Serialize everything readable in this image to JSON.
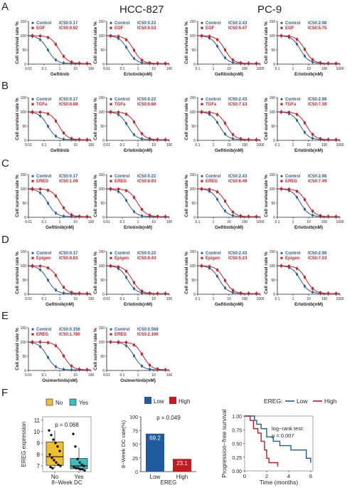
{
  "figure": {
    "headers": [
      "HCC-827",
      "PC-9"
    ],
    "panel_letters": [
      "A",
      "B",
      "C",
      "D",
      "E",
      "F"
    ]
  },
  "colors": {
    "control": "#2a5c9a",
    "treated": "#cc2027",
    "box_no": "#f0c030",
    "box_yes": "#3bbfbf",
    "bar_low": "#1f5b9e",
    "bar_high": "#c41a20"
  },
  "chart_data": [
    {
      "type": "line",
      "panel": "A",
      "cell_line": "HCC-827",
      "ylabel": "Cell survival rate %",
      "xlabel": "Gefitinib",
      "x_ticks": [
        "0.01",
        "0.1",
        "1",
        "10",
        "100"
      ],
      "y_ticks": [
        "0",
        "50",
        "100",
        "150"
      ],
      "ylim": [
        0,
        150
      ],
      "legend": [
        {
          "name": "Control",
          "ic50": "IC50:0.17"
        },
        {
          "name": "EGF",
          "ic50": "IC50:0.92"
        }
      ]
    },
    {
      "type": "line",
      "panel": "A",
      "cell_line": "HCC-827",
      "ylabel": "Cell survival rate %",
      "xlabel": "Erlotinib(nM)",
      "x_ticks": [
        "0.01",
        "0.1",
        "1",
        "10",
        "100"
      ],
      "y_ticks": [
        "0",
        "50",
        "100",
        "150"
      ],
      "ylim": [
        0,
        150
      ],
      "legend": [
        {
          "name": "Control",
          "ic50": "IC50:0.22"
        },
        {
          "name": "EGF",
          "ic50": "IC50:0.53"
        }
      ]
    },
    {
      "type": "line",
      "panel": "A",
      "cell_line": "PC-9",
      "ylabel": "Cell survival rate %",
      "xlabel": "Gefitinib(nM)",
      "x_ticks": [
        "0.1",
        "1",
        "10",
        "100",
        "1000"
      ],
      "y_ticks": [
        "0",
        "50",
        "100",
        "150"
      ],
      "ylim": [
        0,
        150
      ],
      "legend": [
        {
          "name": "Control",
          "ic50": "IC50:2.43"
        },
        {
          "name": "EGF",
          "ic50": "IC50:5.47"
        }
      ]
    },
    {
      "type": "line",
      "panel": "A",
      "cell_line": "PC-9",
      "ylabel": "Cell survival rate %",
      "xlabel": "Erlotinib(nM)",
      "x_ticks": [
        "0.1",
        "1",
        "10",
        "100",
        "1000"
      ],
      "y_ticks": [
        "0",
        "50",
        "100",
        "150"
      ],
      "ylim": [
        0,
        150
      ],
      "legend": [
        {
          "name": "Control",
          "ic50": "IC50:2.98"
        },
        {
          "name": "EGF",
          "ic50": "IC50:5.75"
        }
      ]
    },
    {
      "type": "line",
      "panel": "B",
      "cell_line": "HCC-827",
      "ylabel": "Cell survival rate %",
      "xlabel": "Gefitinib",
      "x_ticks": [
        "0.01",
        "0.1",
        "1",
        "10",
        "100"
      ],
      "y_ticks": [
        "0",
        "50",
        "100",
        "150"
      ],
      "ylim": [
        0,
        150
      ],
      "legend": [
        {
          "name": "Control",
          "ic50": "IC50:0.17"
        },
        {
          "name": "TGFa",
          "ic50": "IC50:0.88"
        }
      ]
    },
    {
      "type": "line",
      "panel": "B",
      "cell_line": "HCC-827",
      "ylabel": "Cell survival rate %",
      "xlabel": "Erlotinib(nM)",
      "x_ticks": [
        "0.01",
        "0.1",
        "1",
        "10",
        "100"
      ],
      "y_ticks": [
        "0",
        "50",
        "100",
        "150"
      ],
      "ylim": [
        0,
        150
      ],
      "legend": [
        {
          "name": "Control",
          "ic50": "IC50:0.22"
        },
        {
          "name": "TGFa",
          "ic50": "IC50:0.80"
        }
      ]
    },
    {
      "type": "line",
      "panel": "B",
      "cell_line": "PC-9",
      "ylabel": "Cell survival rate %",
      "xlabel": "Gefitinib(nM)",
      "x_ticks": [
        "0.1",
        "1",
        "10",
        "100",
        "1000"
      ],
      "y_ticks": [
        "0",
        "50",
        "100",
        "150"
      ],
      "ylim": [
        0,
        150
      ],
      "legend": [
        {
          "name": "Control",
          "ic50": "IC50:2.43"
        },
        {
          "name": "TGFa",
          "ic50": "IC50:7.13"
        }
      ]
    },
    {
      "type": "line",
      "panel": "B",
      "cell_line": "PC-9",
      "ylabel": "Cell survival rate %",
      "xlabel": "Erlotinib(nM)",
      "x_ticks": [
        "0.1",
        "1",
        "10",
        "100",
        "1000"
      ],
      "y_ticks": [
        "0",
        "50",
        "100",
        "150"
      ],
      "ylim": [
        0,
        150
      ],
      "legend": [
        {
          "name": "Control",
          "ic50": "IC50:2.98"
        },
        {
          "name": "TGFa",
          "ic50": "IC50:7.39"
        }
      ]
    },
    {
      "type": "line",
      "panel": "C",
      "cell_line": "HCC-827",
      "ylabel": "Cell survival rate %",
      "xlabel": "Gefitinib(nM)",
      "x_ticks": [
        "0.01",
        "0.1",
        "1",
        "10",
        "100"
      ],
      "y_ticks": [
        "0",
        "50",
        "100",
        "150"
      ],
      "ylim": [
        0,
        150
      ],
      "legend": [
        {
          "name": "Control",
          "ic50": "IC50:0.17"
        },
        {
          "name": "EREG",
          "ic50": "IC50:1.09"
        }
      ]
    },
    {
      "type": "line",
      "panel": "C",
      "cell_line": "HCC-827",
      "ylabel": "Cell survival rate %",
      "xlabel": "Erlotinib(nM)",
      "x_ticks": [
        "0.01",
        "0.1",
        "1",
        "10",
        "100"
      ],
      "y_ticks": [
        "0",
        "50",
        "100",
        "150"
      ],
      "ylim": [
        0,
        150
      ],
      "legend": [
        {
          "name": "Control",
          "ic50": "IC50:0.22"
        },
        {
          "name": "EREG",
          "ic50": "IC50:0.93"
        }
      ]
    },
    {
      "type": "line",
      "panel": "C",
      "cell_line": "PC-9",
      "ylabel": "Cell survival rate %",
      "xlabel": "Gefitinib(nM)",
      "x_ticks": [
        "0.1",
        "1",
        "10",
        "100",
        "1000"
      ],
      "y_ticks": [
        "0",
        "50",
        "100",
        "150"
      ],
      "ylim": [
        0,
        150
      ],
      "legend": [
        {
          "name": "Control",
          "ic50": "IC50:2.43"
        },
        {
          "name": "EREG",
          "ic50": "IC50:6.49"
        }
      ]
    },
    {
      "type": "line",
      "panel": "C",
      "cell_line": "PC-9",
      "ylabel": "Cell survival rate %",
      "xlabel": "Erlotinib(nM)",
      "x_ticks": [
        "0.1",
        "1",
        "10",
        "100",
        "1000"
      ],
      "y_ticks": [
        "0",
        "50",
        "100",
        "150"
      ],
      "ylim": [
        0,
        150
      ],
      "legend": [
        {
          "name": "Control",
          "ic50": "IC50:2.98"
        },
        {
          "name": "EREG",
          "ic50": "IC50:7.49"
        }
      ]
    },
    {
      "type": "line",
      "panel": "D",
      "cell_line": "HCC-827",
      "ylabel": "Cell survival rate %",
      "xlabel": "Gefitinib(nM)",
      "x_ticks": [
        "0.01",
        "0.1",
        "1",
        "10",
        "100"
      ],
      "y_ticks": [
        "0",
        "50",
        "100",
        "150"
      ],
      "ylim": [
        0,
        150
      ],
      "legend": [
        {
          "name": "Control",
          "ic50": "IC50:0.17"
        },
        {
          "name": "Epigen",
          "ic50": "IC50:0.83"
        }
      ]
    },
    {
      "type": "line",
      "panel": "D",
      "cell_line": "HCC-827",
      "ylabel": "Cell survival rate %",
      "xlabel": "Erlotinib(nM)",
      "x_ticks": [
        "0.01",
        "0.1",
        "1",
        "10",
        "100"
      ],
      "y_ticks": [
        "0",
        "50",
        "100",
        "150"
      ],
      "ylim": [
        0,
        150
      ],
      "legend": [
        {
          "name": "Control",
          "ic50": "IC50:0.22"
        },
        {
          "name": "Epigen",
          "ic50": "IC50:0.43"
        }
      ]
    },
    {
      "type": "line",
      "panel": "D",
      "cell_line": "PC-9",
      "ylabel": "Cell survival rate %",
      "xlabel": "Gefitinib(nM)",
      "x_ticks": [
        "0.1",
        "1",
        "10",
        "100",
        "1000"
      ],
      "y_ticks": [
        "0",
        "50",
        "100",
        "150"
      ],
      "ylim": [
        0,
        150
      ],
      "legend": [
        {
          "name": "Control",
          "ic50": "IC50:2.43"
        },
        {
          "name": "Epigen",
          "ic50": "IC50:5.23"
        }
      ]
    },
    {
      "type": "line",
      "panel": "D",
      "cell_line": "PC-9",
      "ylabel": "Cell survival rate %",
      "xlabel": "Erlotinib(nM)",
      "x_ticks": [
        "0.1",
        "1",
        "10",
        "100",
        "1000"
      ],
      "y_ticks": [
        "0",
        "50",
        "100",
        "150"
      ],
      "ylim": [
        0,
        150
      ],
      "legend": [
        {
          "name": "Control",
          "ic50": "IC50:2.98"
        },
        {
          "name": "Epigen",
          "ic50": "IC50:7.03"
        }
      ]
    },
    {
      "type": "line",
      "panel": "E",
      "ylabel": "Cell survival rate %",
      "xlabel": "Osimertinib(nM)",
      "x_ticks": [
        "0.01",
        "0.1",
        "1",
        "10",
        "100"
      ],
      "y_ticks": [
        "0",
        "50",
        "100",
        "150"
      ],
      "ylim": [
        0,
        150
      ],
      "legend": [
        {
          "name": "Control",
          "ic50": "IC50:0.156"
        },
        {
          "name": "EREG",
          "ic50": "IC50:1.780"
        }
      ]
    },
    {
      "type": "line",
      "panel": "E",
      "ylabel": "Cell survival rate %",
      "xlabel": "Osimertinib(nM)",
      "x_ticks": [
        "0.01",
        "0.1",
        "1",
        "10",
        "100"
      ],
      "y_ticks": [
        "0",
        "50",
        "100",
        "150"
      ],
      "ylim": [
        0,
        150
      ],
      "legend": [
        {
          "name": "Control",
          "ic50": "IC50:0.568"
        },
        {
          "name": "EREG",
          "ic50": "IC50:2.106"
        }
      ]
    },
    {
      "type": "box",
      "panel": "F",
      "ylabel": "EREG expression",
      "xlabel": "8−Week DC",
      "categories": [
        "No",
        "Yes"
      ],
      "legend": [
        "No",
        "Yes"
      ],
      "y_ticks": [
        "7",
        "8",
        "9",
        "10",
        "11"
      ],
      "ylim": [
        6.5,
        11.3
      ],
      "annotation": "p = 0.068",
      "boxes": [
        {
          "q1": 7.05,
          "median": 7.8,
          "q3": 9.1,
          "lo": 6.8,
          "hi": 10.1
        },
        {
          "q1": 6.75,
          "median": 7.0,
          "q3": 7.65,
          "lo": 6.6,
          "hi": 8.6
        }
      ],
      "points": [
        [
          10.1,
          9.7,
          9.3,
          9.0,
          8.7,
          8.3,
          8.0,
          7.7,
          7.5,
          7.3,
          7.1,
          7.0,
          6.9,
          6.8
        ],
        [
          9.8,
          8.7,
          7.6,
          7.3,
          7.1,
          7.0,
          6.9,
          6.8,
          6.8,
          6.7,
          6.7,
          6.6
        ]
      ]
    },
    {
      "type": "bar",
      "panel": "F",
      "ylabel": "8−Week DC rate(%)",
      "xlabel": "EREG",
      "categories": [
        "Low",
        "High"
      ],
      "values": [
        69.2,
        23.1
      ],
      "labels": [
        "69.2",
        "23.1"
      ],
      "legend": [
        "Low",
        "High"
      ],
      "y_ticks": [
        "0",
        "25",
        "50",
        "75",
        "100"
      ],
      "ylim": [
        0,
        100
      ],
      "annotation": "p = 0.049"
    },
    {
      "type": "line",
      "panel": "F",
      "ylabel": "Progression−free survival",
      "xlabel": "Time (months)",
      "legend_title": "EREG:",
      "legend": [
        "Low",
        "High"
      ],
      "annotation": [
        "log−rank test:",
        "p = 0.007"
      ],
      "x_ticks": [
        "0",
        "2",
        "4",
        "6"
      ],
      "y_ticks": [
        "0.00",
        "0.25",
        "0.50",
        "0.75",
        "1.00"
      ],
      "xlim": [
        0,
        6.2
      ],
      "ylim": [
        0,
        1
      ],
      "series": [
        {
          "name": "Low",
          "x": [
            0,
            0.9,
            1.1,
            1.5,
            2.0,
            2.6,
            3.2,
            4.2,
            5.6,
            6.0
          ],
          "y": [
            1,
            0.92,
            0.85,
            0.77,
            0.62,
            0.54,
            0.46,
            0.38,
            0.23,
            0.15
          ]
        },
        {
          "name": "High",
          "x": [
            0,
            0.5,
            0.8,
            1.2,
            1.5,
            1.8,
            2.0,
            2.2,
            3.0
          ],
          "y": [
            1,
            0.92,
            0.77,
            0.69,
            0.54,
            0.38,
            0.23,
            0.15,
            0.08
          ]
        }
      ]
    }
  ]
}
